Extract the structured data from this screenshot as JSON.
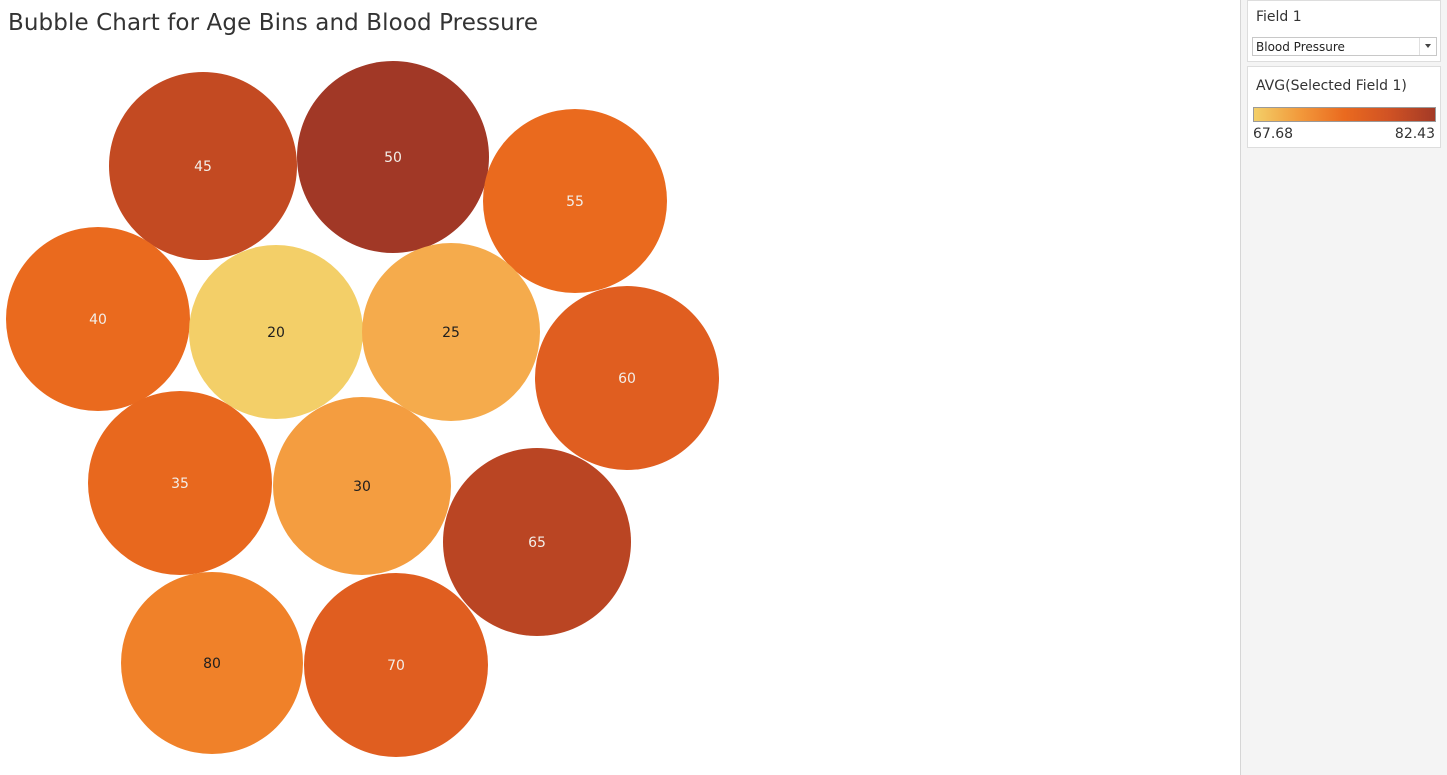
{
  "title": "Bubble Chart for Age Bins and Blood Pressure",
  "filter": {
    "label": "Field 1",
    "selected": "Blood Pressure"
  },
  "legend": {
    "title": "AVG(Selected Field 1)",
    "min_label": "67.68",
    "max_label": "82.43",
    "min": 67.68,
    "max": 82.43,
    "colors": [
      "#f3cf68",
      "#f29a3c",
      "#ea6a1f",
      "#d05224",
      "#a33a26"
    ]
  },
  "chart_data": {
    "type": "bubble",
    "title": "Bubble Chart for Age Bins and Blood Pressure",
    "size_encoding": "none (equal sizes)",
    "color_encoding": "AVG(Selected Field 1)",
    "points": [
      {
        "label": "45",
        "color": "#c34a22",
        "dark_text": false
      },
      {
        "label": "50",
        "color": "#a13826",
        "dark_text": false
      },
      {
        "label": "55",
        "color": "#ea6a1e",
        "dark_text": false
      },
      {
        "label": "40",
        "color": "#ea6a1e",
        "dark_text": false
      },
      {
        "label": "20",
        "color": "#f3cf68",
        "dark_text": true
      },
      {
        "label": "25",
        "color": "#f5ab4c",
        "dark_text": true
      },
      {
        "label": "60",
        "color": "#e05e20",
        "dark_text": false
      },
      {
        "label": "35",
        "color": "#e8681e",
        "dark_text": false
      },
      {
        "label": "30",
        "color": "#f49d40",
        "dark_text": true
      },
      {
        "label": "65",
        "color": "#ba4523",
        "dark_text": false
      },
      {
        "label": "80",
        "color": "#f08129",
        "dark_text": true
      },
      {
        "label": "70",
        "color": "#e05e20",
        "dark_text": false
      }
    ]
  }
}
